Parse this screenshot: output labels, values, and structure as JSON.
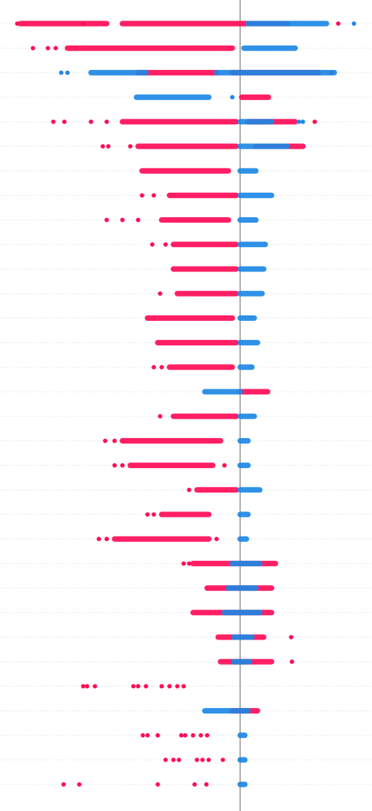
{
  "chart_data": {
    "type": "beeswarm",
    "xlim": [
      -306,
      168
    ],
    "zero_line": 0,
    "red_color": "#ff0d57",
    "blue_color": "#1e88e5",
    "rows": [
      {
        "red": [
          -284,
          -200,
          125
        ],
        "red_bands": [
          [
            -280,
            -170
          ],
          [
            -150,
            60
          ]
        ],
        "blue": [
          145
        ],
        "blue_bands": [
          [
            10,
            110
          ]
        ]
      },
      {
        "red": [
          -264,
          -245,
          -235
        ],
        "red_bands": [
          [
            -220,
            -10
          ]
        ],
        "blue": [],
        "blue_bands": [
          [
            5,
            70
          ]
        ]
      },
      {
        "red": [
          116
        ],
        "red_bands": [
          [
            -130,
            -30
          ],
          [
            -10,
            100
          ]
        ],
        "blue": [
          -228,
          -220
        ],
        "blue_bands": [
          [
            -190,
            -120
          ],
          [
            -30,
            120
          ]
        ]
      },
      {
        "red": [],
        "red_bands": [
          [
            2,
            36
          ]
        ],
        "blue": [
          -10
        ],
        "blue_bands": [
          [
            -132,
            -40
          ]
        ]
      },
      {
        "red": [
          -238,
          -224,
          -190,
          -170,
          95
        ],
        "red_bands": [
          [
            -150,
            -5
          ],
          [
            10,
            70
          ]
        ],
        "blue": [
          75,
          80
        ],
        "blue_bands": [
          [
            0,
            40
          ]
        ]
      },
      {
        "red": [
          -175,
          -168,
          -140
        ],
        "red_bands": [
          [
            -130,
            -5
          ],
          [
            20,
            80
          ]
        ],
        "blue": [],
        "blue_bands": [
          [
            0,
            60
          ]
        ]
      },
      {
        "red": [],
        "red_bands": [
          [
            -125,
            -15
          ]
        ],
        "blue": [],
        "blue_bands": [
          [
            0,
            20
          ]
        ]
      },
      {
        "red": [
          -125,
          -110
        ],
        "red_bands": [
          [
            -90,
            -5
          ]
        ],
        "blue": [],
        "blue_bands": [
          [
            0,
            40
          ]
        ]
      },
      {
        "red": [
          -170,
          -150,
          -130
        ],
        "red_bands": [
          [
            -100,
            -15
          ]
        ],
        "blue": [],
        "blue_bands": [
          [
            0,
            20
          ]
        ]
      },
      {
        "red": [
          -112,
          -95
        ],
        "red_bands": [
          [
            -85,
            -5
          ]
        ],
        "blue": [],
        "blue_bands": [
          [
            0,
            32
          ]
        ]
      },
      {
        "red": [],
        "red_bands": [
          [
            -85,
            -5
          ]
        ],
        "blue": [],
        "blue_bands": [
          [
            0,
            30
          ]
        ]
      },
      {
        "red": [
          -102
        ],
        "red_bands": [
          [
            -80,
            -5
          ]
        ],
        "blue": [],
        "blue_bands": [
          [
            0,
            28
          ]
        ]
      },
      {
        "red": [],
        "red_bands": [
          [
            -118,
            -10
          ]
        ],
        "blue": [],
        "blue_bands": [
          [
            0,
            18
          ]
        ]
      },
      {
        "red": [],
        "red_bands": [
          [
            -105,
            -5
          ]
        ],
        "blue": [],
        "blue_bands": [
          [
            0,
            22
          ]
        ]
      },
      {
        "red": [
          -110,
          -100
        ],
        "red_bands": [
          [
            -90,
            -10
          ]
        ],
        "blue": [],
        "blue_bands": [
          [
            0,
            15
          ]
        ]
      },
      {
        "red": [],
        "red_bands": [
          [
            0,
            35
          ]
        ],
        "blue": [],
        "blue_bands": [
          [
            -45,
            0
          ]
        ]
      },
      {
        "red": [
          -102
        ],
        "red_bands": [
          [
            -85,
            -5
          ]
        ],
        "blue": [],
        "blue_bands": [
          [
            0,
            18
          ]
        ]
      },
      {
        "red": [
          -172,
          -160
        ],
        "red_bands": [
          [
            -150,
            -25
          ]
        ],
        "blue": [],
        "blue_bands": [
          [
            0,
            10
          ]
        ]
      },
      {
        "red": [
          -160,
          -150,
          -20
        ],
        "red_bands": [
          [
            -140,
            -35
          ]
        ],
        "blue": [],
        "blue_bands": [
          [
            0,
            10
          ]
        ]
      },
      {
        "red": [
          -65
        ],
        "red_bands": [
          [
            -55,
            -5
          ]
        ],
        "blue": [],
        "blue_bands": [
          [
            0,
            25
          ]
        ]
      },
      {
        "red": [
          -118,
          -110
        ],
        "red_bands": [
          [
            -100,
            -40
          ]
        ],
        "blue": [],
        "blue_bands": [
          [
            0,
            10
          ]
        ]
      },
      {
        "red": [
          -180,
          -170,
          -30
        ],
        "red_bands": [
          [
            -160,
            -40
          ]
        ],
        "blue": [],
        "blue_bands": [
          [
            0,
            8
          ]
        ]
      },
      {
        "red": [
          -72,
          -65
        ],
        "red_bands": [
          [
            -60,
            45
          ]
        ],
        "blue": [],
        "blue_bands": [
          [
            -10,
            25
          ]
        ]
      },
      {
        "red": [],
        "red_bands": [
          [
            -42,
            40
          ]
        ],
        "blue": [],
        "blue_bands": [
          [
            -15,
            20
          ]
        ]
      },
      {
        "red": [],
        "red_bands": [
          [
            -60,
            40
          ]
        ],
        "blue": [],
        "blue_bands": [
          [
            -20,
            25
          ]
        ]
      },
      {
        "red": [
          65
        ],
        "red_bands": [
          [
            -28,
            30
          ]
        ],
        "blue": [],
        "blue_bands": [
          [
            -8,
            15
          ]
        ]
      },
      {
        "red": [
          66
        ],
        "red_bands": [
          [
            -25,
            40
          ]
        ],
        "blue": [],
        "blue_bands": [
          [
            -8,
            12
          ]
        ]
      },
      {
        "red": [
          -200,
          -195,
          -185,
          -136,
          -130,
          -120,
          -100,
          -90,
          -80,
          -72
        ],
        "red_bands": [],
        "blue": [],
        "blue_bands": []
      },
      {
        "red": [],
        "red_bands": [
          [
            -10,
            22
          ]
        ],
        "blue": [],
        "blue_bands": [
          [
            -45,
            -10
          ],
          [
            -5,
            10
          ]
        ]
      },
      {
        "red": [
          -124,
          -118,
          -105,
          -75,
          -70,
          -60,
          -50,
          -42
        ],
        "red_bands": [],
        "blue": [],
        "blue_bands": [
          [
            0,
            6
          ]
        ]
      },
      {
        "red": [
          -95,
          -85,
          -78,
          -55,
          -48,
          -40,
          -22
        ],
        "red_bands": [],
        "blue": [],
        "blue_bands": [
          [
            0,
            6
          ]
        ]
      },
      {
        "red": [
          -225,
          -205,
          -105,
          -58,
          -43
        ],
        "red_bands": [],
        "blue": [],
        "blue_bands": [
          [
            0,
            6
          ]
        ]
      }
    ]
  }
}
